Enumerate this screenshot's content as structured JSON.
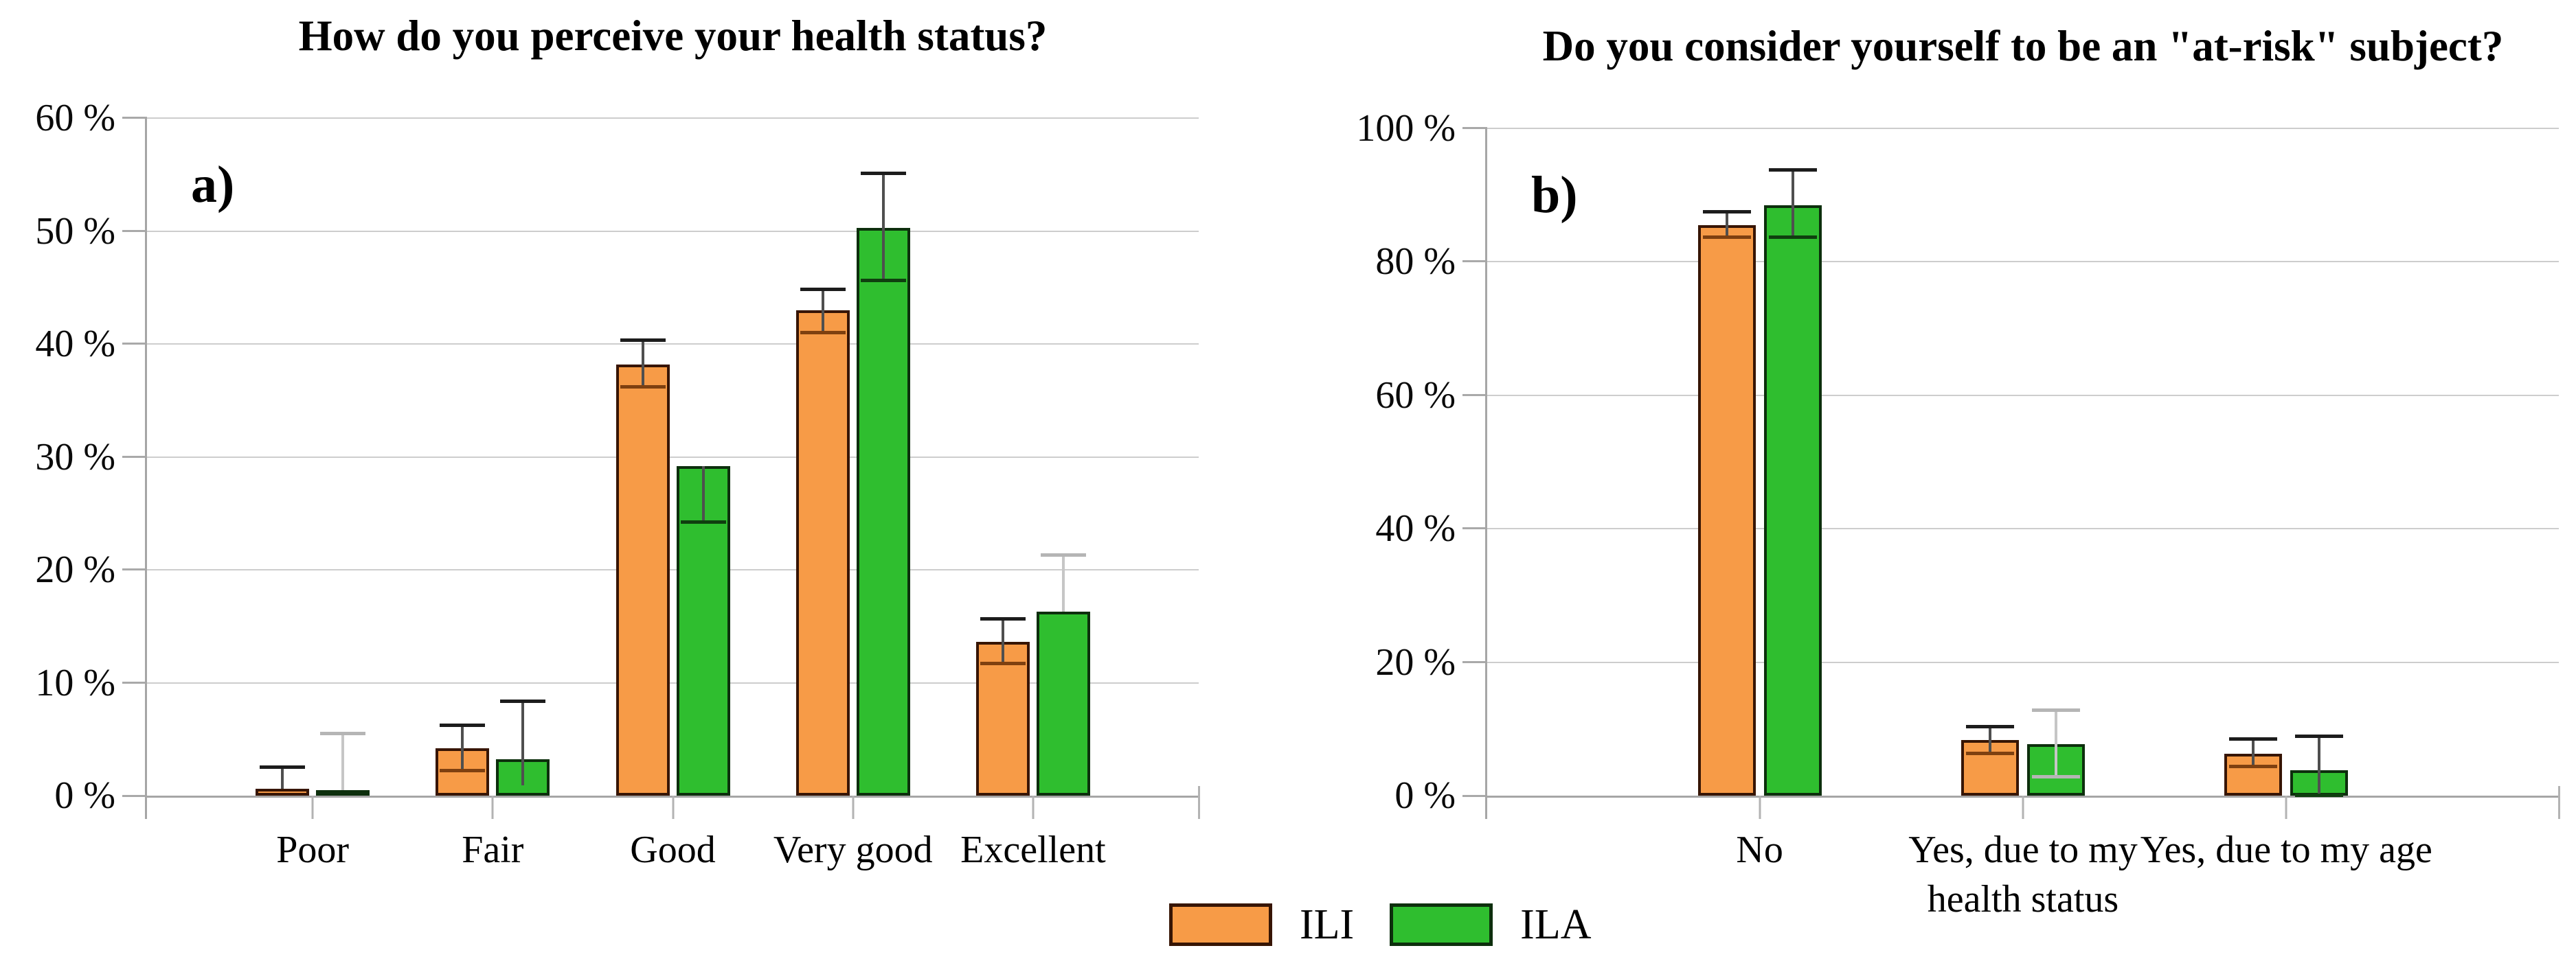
{
  "figure": {
    "background": "#ffffff"
  },
  "legend": {
    "position": "bottom-center",
    "items": [
      {
        "label": "ILI",
        "color": "#F79B47",
        "border": "#371504",
        "err_cap_dark": "#7E4010"
      },
      {
        "label": "ILA",
        "color": "#2FBE2F",
        "border": "#0D2F0D",
        "err_cap_dark": "#0F3F0F"
      }
    ]
  },
  "chart_data": [
    {
      "id": "a",
      "type": "bar",
      "panel_label": "a)",
      "title": "How do you perceive your health status?",
      "categories": [
        "Poor",
        "Fair",
        "Good",
        "Very good",
        "Excellent"
      ],
      "xlabel": "",
      "ylabel": "",
      "ylim": [
        0,
        60
      ],
      "ytick_step": 10,
      "ytick_suffix": " %",
      "grid": true,
      "series": [
        {
          "name": "ILI",
          "values": [
            0.6,
            4.2,
            38.2,
            43.0,
            13.6
          ],
          "errors": [
            {
              "low": 0.6,
              "high": 2.5,
              "caps": "top"
            },
            {
              "low": 2.2,
              "high": 6.2,
              "caps": "both"
            },
            {
              "low": 36.2,
              "high": 40.3,
              "caps": "both"
            },
            {
              "low": 41.0,
              "high": 44.8,
              "caps": "both"
            },
            {
              "low": 11.7,
              "high": 15.6,
              "caps": "both"
            }
          ]
        },
        {
          "name": "ILA",
          "values": [
            0.5,
            3.2,
            29.2,
            50.3,
            16.3
          ],
          "errors": [
            {
              "low": 0.5,
              "high": 5.5,
              "caps": "top",
              "variant": "gray"
            },
            {
              "low": 0.9,
              "high": 8.3,
              "caps": "top"
            },
            {
              "low": 24.2,
              "high": 29.2,
              "caps": "bottom"
            },
            {
              "low": 45.6,
              "high": 55.1,
              "caps": "both"
            },
            {
              "low": 16.3,
              "high": 21.3,
              "caps": "top",
              "variant": "gray"
            }
          ]
        }
      ]
    },
    {
      "id": "b",
      "type": "bar",
      "panel_label": "b)",
      "title": "Do you consider yourself to be an \"at-risk\" subject?",
      "categories": [
        "No",
        "Yes, due to my\nhealth status",
        "Yes, due to my age"
      ],
      "xlabel": "",
      "ylabel": "",
      "ylim": [
        0,
        100
      ],
      "ytick_step": 20,
      "ytick_suffix": " %",
      "grid": true,
      "series": [
        {
          "name": "ILI",
          "values": [
            85.5,
            8.3,
            6.3
          ],
          "errors": [
            {
              "low": 83.6,
              "high": 87.4,
              "caps": "both"
            },
            {
              "low": 6.3,
              "high": 10.3,
              "caps": "both"
            },
            {
              "low": 4.3,
              "high": 8.4,
              "caps": "both"
            }
          ]
        },
        {
          "name": "ILA",
          "values": [
            88.5,
            7.7,
            3.8
          ],
          "errors": [
            {
              "low": 83.6,
              "high": 93.7,
              "caps": "both"
            },
            {
              "low": 2.8,
              "high": 12.8,
              "caps": "both",
              "variant": "gray"
            },
            {
              "low": 0.0,
              "high": 8.8,
              "caps": "both"
            }
          ]
        }
      ]
    }
  ]
}
